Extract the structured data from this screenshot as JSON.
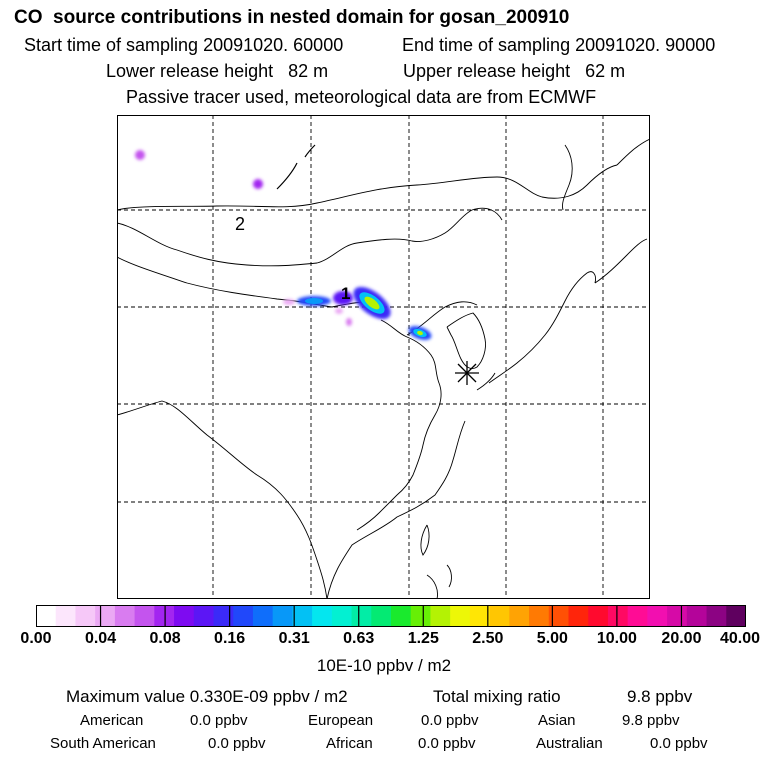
{
  "header": {
    "title": "CO  source contributions in nested domain for gosan_200910",
    "start_time": "Start time of sampling 20091020. 60000",
    "end_time": "End time of sampling 20091020. 90000",
    "lower_height": "Lower release height   82 m",
    "upper_height": "Upper release height   62 m",
    "tracer_note": "Passive tracer used, meteorological data are from ECMWF"
  },
  "map": {
    "labels": {
      "source1": "1",
      "source2": "2"
    },
    "receptor_marker": "star-marker"
  },
  "colorbar": {
    "colors": [
      "#ffffff",
      "#fce6fc",
      "#f6c8f8",
      "#eba9f4",
      "#d97cf0",
      "#c454ee",
      "#a325f0",
      "#7e0bf1",
      "#5c16f5",
      "#3b2af8",
      "#2148fa",
      "#0f6efb",
      "#0898f8",
      "#03c1f4",
      "#04e6ef",
      "#03f0d2",
      "#02eda6",
      "#04ea73",
      "#1aea2d",
      "#67ef06",
      "#b4f204",
      "#edf707",
      "#ffe605",
      "#ffc602",
      "#ffa304",
      "#ff7a03",
      "#ff5005",
      "#ff250b",
      "#ff0a2e",
      "#ff0963",
      "#ff0c95",
      "#f20fb0",
      "#d60aa7",
      "#b4049a",
      "#8c0383",
      "#5f005f"
    ],
    "tick_labels": [
      "0.00",
      "0.04",
      "0.08",
      "0.16",
      "0.31",
      "0.63",
      "1.25",
      "2.50",
      "5.00",
      "10.00",
      "20.00",
      "40.00"
    ],
    "units": "10E-10 ppbv / m2"
  },
  "summary": {
    "max_label": "Maximum value  0.330E-09 ppbv / m2",
    "total_label": "Total mixing ratio",
    "total_value": "9.8 ppbv"
  },
  "regions": [
    {
      "name": "American",
      "value": "0.0 ppbv"
    },
    {
      "name": "European",
      "value": "0.0 ppbv"
    },
    {
      "name": "Asian",
      "value": "9.8 ppbv"
    },
    {
      "name": "South American",
      "value": "0.0 ppbv"
    },
    {
      "name": "African",
      "value": "0.0 ppbv"
    },
    {
      "name": "Australian",
      "value": "0.0 ppbv"
    }
  ]
}
